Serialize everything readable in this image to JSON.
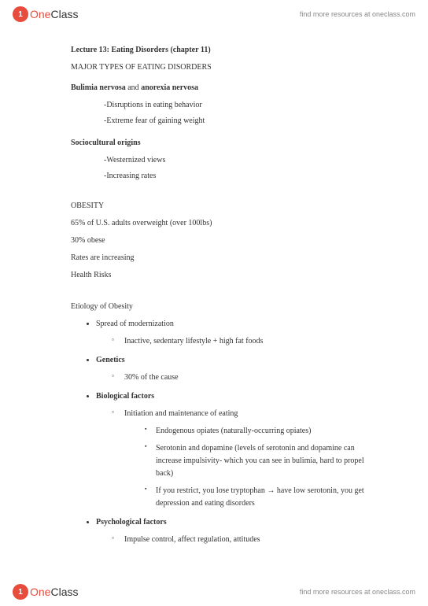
{
  "brand": {
    "logoPrefix": "One",
    "logoSuffix": "Class",
    "tagline": "find more resources at oneclass.com"
  },
  "doc": {
    "title": "Lecture 13: Eating Disorders (chapter 11)",
    "mainHeading": "MAJOR TYPES OF EATING DISORDERS",
    "nervosa": {
      "bold1": "Bulimia nervosa",
      "connector": " and ",
      "bold2": "anorexia nervosa",
      "item1": "-Disruptions in eating behavior",
      "item2": "-Extreme fear of gaining weight"
    },
    "socio": {
      "heading": "Sociocultural origins",
      "item1": "-Westernized views",
      "item2": "-Increasing rates"
    },
    "obesity": {
      "heading": "OBESITY",
      "line1": "65% of U.S. adults overweight (over 100lbs)",
      "line2": "30% obese",
      "line3": "Rates are increasing",
      "line4": "Health Risks"
    },
    "etiology": {
      "heading": "Etiology of Obesity",
      "b1": {
        "label": "Spread of modernization",
        "s1": "Inactive, sedentary lifestyle + high fat foods"
      },
      "b2": {
        "label": "Genetics",
        "s1": "30% of the cause"
      },
      "b3": {
        "label": "Biological factors",
        "s1": "Initiation and maintenance of eating",
        "ss1": "Endogenous opiates (naturally-occurring opiates)",
        "ss2": "Serotonin and dopamine (levels of serotonin and dopamine can increase impulsivity- which you can see in bulimia, hard to propel back)",
        "ss3": "If you restrict, you lose tryptophan → have low serotonin, you get depression and eating disorders"
      },
      "b4": {
        "label": "Psychological factors",
        "s1": "Impulse control, affect regulation, attitudes"
      }
    }
  },
  "style": {
    "pageWidth": 544,
    "pageHeight": 770,
    "background": "#ffffff",
    "textColor": "#333333",
    "brandRed": "#e74c3c",
    "greyText": "#888888",
    "bodyFontSize": 10,
    "headerFontSize": 9,
    "logoFontSize": 14
  }
}
